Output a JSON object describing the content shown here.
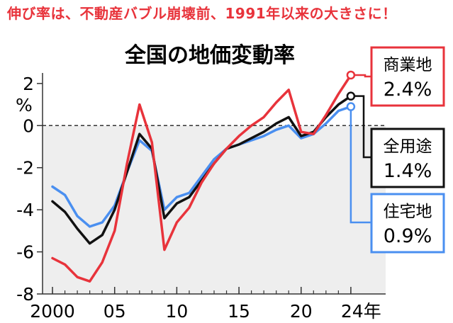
{
  "headline": "伸び率は、不動産バブル崩壊前、1991年以来の大きさに！",
  "chart_data": {
    "type": "line",
    "title": "全国の地価変動率",
    "ylabel": "%",
    "xlabel_unit": "年",
    "x": [
      2000,
      2001,
      2002,
      2003,
      2004,
      2005,
      2006,
      2007,
      2008,
      2009,
      2010,
      2011,
      2012,
      2013,
      2014,
      2015,
      2016,
      2017,
      2018,
      2019,
      2020,
      2021,
      2022,
      2023,
      2024
    ],
    "xlim": [
      1999.2,
      2026.8
    ],
    "ylim": [
      -8,
      2.5
    ],
    "x_ticks": [
      {
        "value": 2000,
        "label": "2000"
      },
      {
        "value": 2005,
        "label": "05"
      },
      {
        "value": 2010,
        "label": "10"
      },
      {
        "value": 2015,
        "label": "15"
      },
      {
        "value": 2020,
        "label": "20"
      },
      {
        "value": 2024,
        "label": "24年"
      }
    ],
    "y_ticks": [
      {
        "value": 2,
        "label": "2"
      },
      {
        "value": 0,
        "label": "0"
      },
      {
        "value": -2,
        "label": "-2"
      },
      {
        "value": -4,
        "label": "-4"
      },
      {
        "value": -6,
        "label": "-6"
      },
      {
        "value": -8,
        "label": "-8"
      }
    ],
    "zero_line": true,
    "negative_region_shaded": true,
    "series": [
      {
        "name": "住宅地",
        "end_label": "0.9%",
        "color": "#4a8ff0",
        "values": [
          -2.9,
          -3.3,
          -4.3,
          -4.8,
          -4.6,
          -3.8,
          -2.2,
          -0.7,
          -1.2,
          -4.0,
          -3.4,
          -3.2,
          -2.4,
          -1.6,
          -1.1,
          -0.9,
          -0.7,
          -0.5,
          -0.2,
          0.0,
          -0.6,
          -0.4,
          0.1,
          0.7,
          0.9
        ]
      },
      {
        "name": "全用途",
        "end_label": "1.4%",
        "color": "#111111",
        "values": [
          -3.6,
          -4.1,
          -4.9,
          -5.6,
          -5.2,
          -4.0,
          -2.2,
          -0.4,
          -1.1,
          -4.4,
          -3.7,
          -3.4,
          -2.6,
          -1.8,
          -1.1,
          -0.9,
          -0.6,
          -0.3,
          0.1,
          0.4,
          -0.5,
          -0.3,
          0.4,
          1.0,
          1.4
        ]
      },
      {
        "name": "商業地",
        "end_label": "2.4%",
        "color": "#e8333b",
        "values": [
          -6.3,
          -6.6,
          -7.2,
          -7.4,
          -6.5,
          -5.0,
          -1.8,
          1.0,
          -0.8,
          -5.9,
          -4.6,
          -3.9,
          -2.7,
          -1.8,
          -1.1,
          -0.5,
          0.0,
          0.4,
          1.1,
          1.7,
          -0.3,
          -0.4,
          0.5,
          1.5,
          2.4
        ]
      }
    ]
  }
}
